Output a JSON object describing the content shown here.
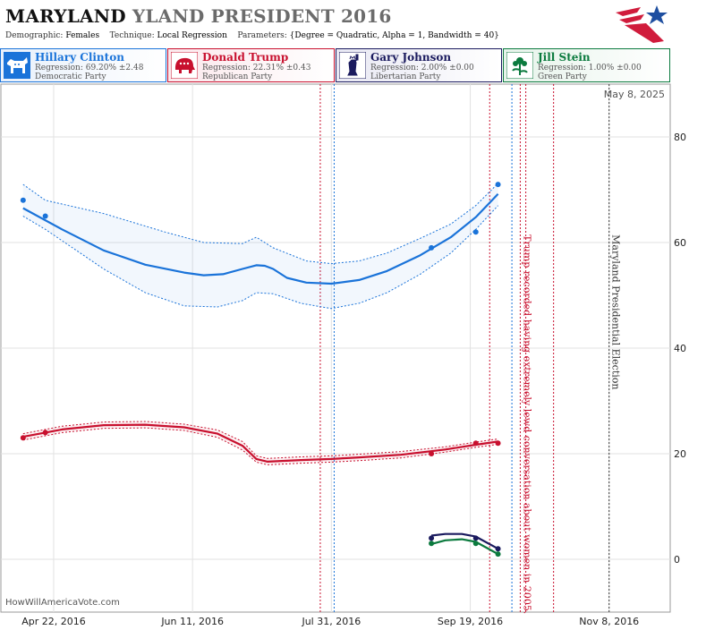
{
  "header": {
    "title_state": "MARYLAND",
    "title_rest": "YLAND PRESIDENT 2016",
    "demographic_label": "Demographic:",
    "demographic_value": "Females",
    "technique_label": "Technique:",
    "technique_value": "Local Regression",
    "parameters_label": "Parameters:",
    "parameters_value": "{Degree = Quadratic, Alpha = 1, Bandwidth = 40}"
  },
  "logo": {
    "icon": "star-logo-icon",
    "colors": [
      "#1f4fa0",
      "#d01c3c"
    ]
  },
  "legend": [
    {
      "name": "Hillary Clinton",
      "regression": "Regression: 69.20% ±2.48",
      "party": "Democratic Party",
      "color": "#1a73d9",
      "icon": "donkey-icon"
    },
    {
      "name": "Donald Trump",
      "regression": "Regression: 22.31% ±0.43",
      "party": "Republican Party",
      "color": "#c8102e",
      "icon": "elephant-icon"
    },
    {
      "name": "Gary Johnson",
      "regression": "Regression: 2.00% ±0.00",
      "party": "Libertarian Party",
      "color": "#1a1a5e",
      "icon": "statue-of-liberty-icon"
    },
    {
      "name": "Jill Stein",
      "regression": "Regression: 1.00% ±0.00",
      "party": "Green Party",
      "color": "#0b7a3e",
      "icon": "flower-icon"
    }
  ],
  "footer": {
    "credit": "HowWillAmericaVote.com"
  },
  "chart_data": {
    "type": "line",
    "date_label": "May 8, 2025",
    "x_tick_labels": [
      "Apr 22, 2016",
      "Jun 11, 2016",
      "Jul 31, 2016",
      "Sep 19, 2016",
      "Nov 8, 2016"
    ],
    "x_tick_dates": [
      "2016-04-22",
      "2016-06-11",
      "2016-07-31",
      "2016-09-19",
      "2016-11-08"
    ],
    "xlim": [
      "2016-04-03",
      "2016-11-30"
    ],
    "ylim": [
      -10,
      90
    ],
    "y_ticks": [
      0,
      20,
      40,
      60,
      80
    ],
    "grid": true,
    "series": [
      {
        "name": "Hillary Clinton",
        "color": "#1a73d9",
        "points": [
          [
            "2016-04-11",
            68
          ],
          [
            "2016-04-19",
            65
          ],
          [
            "2016-09-05",
            59
          ],
          [
            "2016-09-21",
            62
          ],
          [
            "2016-09-29",
            71
          ]
        ],
        "trend": [
          [
            "2016-04-11",
            66.5
          ],
          [
            "2016-04-25",
            62.5
          ],
          [
            "2016-05-10",
            58.5
          ],
          [
            "2016-05-25",
            55.8
          ],
          [
            "2016-06-08",
            54.3
          ],
          [
            "2016-06-15",
            53.8
          ],
          [
            "2016-06-22",
            54.0
          ],
          [
            "2016-06-29",
            55.0
          ],
          [
            "2016-07-04",
            55.7
          ],
          [
            "2016-07-07",
            55.6
          ],
          [
            "2016-07-10",
            55.0
          ],
          [
            "2016-07-15",
            53.3
          ],
          [
            "2016-07-22",
            52.4
          ],
          [
            "2016-07-31",
            52.2
          ],
          [
            "2016-08-10",
            52.9
          ],
          [
            "2016-08-20",
            54.6
          ],
          [
            "2016-09-01",
            57.6
          ],
          [
            "2016-09-12",
            61.0
          ],
          [
            "2016-09-21",
            64.8
          ],
          [
            "2016-09-29",
            69.2
          ]
        ],
        "upper": [
          [
            "2016-04-11",
            71
          ],
          [
            "2016-04-19",
            68
          ],
          [
            "2016-05-10",
            65.5
          ],
          [
            "2016-06-01",
            62.0
          ],
          [
            "2016-06-15",
            60.0
          ],
          [
            "2016-06-29",
            59.8
          ],
          [
            "2016-07-04",
            61.0
          ],
          [
            "2016-07-10",
            59.0
          ],
          [
            "2016-07-22",
            56.5
          ],
          [
            "2016-07-31",
            56.0
          ],
          [
            "2016-08-10",
            56.5
          ],
          [
            "2016-08-20",
            58.0
          ],
          [
            "2016-09-01",
            60.8
          ],
          [
            "2016-09-12",
            63.5
          ],
          [
            "2016-09-21",
            67.0
          ],
          [
            "2016-09-29",
            71.2
          ]
        ],
        "lower": [
          [
            "2016-04-11",
            65
          ],
          [
            "2016-04-19",
            62.5
          ],
          [
            "2016-05-10",
            55.0
          ],
          [
            "2016-05-25",
            50.5
          ],
          [
            "2016-06-08",
            48.0
          ],
          [
            "2016-06-20",
            47.8
          ],
          [
            "2016-06-29",
            49.0
          ],
          [
            "2016-07-04",
            50.5
          ],
          [
            "2016-07-10",
            50.3
          ],
          [
            "2016-07-20",
            48.5
          ],
          [
            "2016-07-31",
            47.5
          ],
          [
            "2016-08-10",
            48.5
          ],
          [
            "2016-08-20",
            50.5
          ],
          [
            "2016-09-01",
            54.0
          ],
          [
            "2016-09-12",
            58.0
          ],
          [
            "2016-09-21",
            62.5
          ],
          [
            "2016-09-29",
            67.0
          ]
        ]
      },
      {
        "name": "Donald Trump",
        "color": "#c8102e",
        "points": [
          [
            "2016-04-11",
            23
          ],
          [
            "2016-04-19",
            24
          ],
          [
            "2016-09-05",
            20
          ],
          [
            "2016-09-21",
            22
          ],
          [
            "2016-09-29",
            22
          ]
        ],
        "trend": [
          [
            "2016-04-11",
            23.2
          ],
          [
            "2016-04-25",
            24.6
          ],
          [
            "2016-05-10",
            25.4
          ],
          [
            "2016-05-25",
            25.5
          ],
          [
            "2016-06-08",
            25.0
          ],
          [
            "2016-06-20",
            23.8
          ],
          [
            "2016-06-29",
            21.5
          ],
          [
            "2016-07-04",
            19.0
          ],
          [
            "2016-07-08",
            18.5
          ],
          [
            "2016-07-20",
            18.8
          ],
          [
            "2016-07-31",
            19.0
          ],
          [
            "2016-08-10",
            19.3
          ],
          [
            "2016-08-25",
            19.8
          ],
          [
            "2016-09-10",
            20.8
          ],
          [
            "2016-09-21",
            21.7
          ],
          [
            "2016-09-29",
            22.3
          ]
        ],
        "upper": [
          [
            "2016-04-11",
            23.8
          ],
          [
            "2016-04-25",
            25.2
          ],
          [
            "2016-05-10",
            26.0
          ],
          [
            "2016-05-25",
            26.1
          ],
          [
            "2016-06-08",
            25.6
          ],
          [
            "2016-06-20",
            24.5
          ],
          [
            "2016-06-29",
            22.3
          ],
          [
            "2016-07-04",
            19.6
          ],
          [
            "2016-07-08",
            19.1
          ],
          [
            "2016-07-20",
            19.4
          ],
          [
            "2016-07-31",
            19.6
          ],
          [
            "2016-08-10",
            19.9
          ],
          [
            "2016-08-25",
            20.4
          ],
          [
            "2016-09-10",
            21.3
          ],
          [
            "2016-09-21",
            22.2
          ],
          [
            "2016-09-29",
            22.8
          ]
        ],
        "lower": [
          [
            "2016-04-11",
            22.6
          ],
          [
            "2016-04-25",
            24.0
          ],
          [
            "2016-05-10",
            24.8
          ],
          [
            "2016-05-25",
            24.9
          ],
          [
            "2016-06-08",
            24.4
          ],
          [
            "2016-06-20",
            23.1
          ],
          [
            "2016-06-29",
            20.7
          ],
          [
            "2016-07-04",
            18.4
          ],
          [
            "2016-07-08",
            17.9
          ],
          [
            "2016-07-20",
            18.2
          ],
          [
            "2016-07-31",
            18.4
          ],
          [
            "2016-08-10",
            18.7
          ],
          [
            "2016-08-25",
            19.2
          ],
          [
            "2016-09-10",
            20.3
          ],
          [
            "2016-09-21",
            21.2
          ],
          [
            "2016-09-29",
            21.8
          ]
        ]
      },
      {
        "name": "Gary Johnson",
        "color": "#1a1a5e",
        "points": [
          [
            "2016-09-05",
            4
          ],
          [
            "2016-09-21",
            4
          ],
          [
            "2016-09-29",
            2
          ]
        ],
        "trend": [
          [
            "2016-09-05",
            4.5
          ],
          [
            "2016-09-10",
            4.8
          ],
          [
            "2016-09-16",
            4.8
          ],
          [
            "2016-09-21",
            4.3
          ],
          [
            "2016-09-29",
            2.0
          ]
        ]
      },
      {
        "name": "Jill Stein",
        "color": "#0b7a3e",
        "points": [
          [
            "2016-09-05",
            3
          ],
          [
            "2016-09-21",
            3
          ],
          [
            "2016-09-29",
            1
          ]
        ],
        "trend": [
          [
            "2016-09-05",
            2.9
          ],
          [
            "2016-09-10",
            3.6
          ],
          [
            "2016-09-16",
            3.8
          ],
          [
            "2016-09-21",
            3.3
          ],
          [
            "2016-09-29",
            1.0
          ]
        ]
      }
    ],
    "events": [
      {
        "date": "2016-07-27",
        "color": "#c8102e",
        "label": ""
      },
      {
        "date": "2016-08-01",
        "color": "#1a73d9",
        "label": ""
      },
      {
        "date": "2016-09-26",
        "color": "#c8102e",
        "label": ""
      },
      {
        "date": "2016-10-04",
        "color": "#1a73d9",
        "label": ""
      },
      {
        "date": "2016-10-07",
        "color": "#c8102e",
        "label": "Trump recorded having extremely lewd conversation about women in 2005."
      },
      {
        "date": "2016-10-09",
        "color": "#c8102e",
        "label": ""
      },
      {
        "date": "2016-10-19",
        "color": "#c8102e",
        "label": ""
      },
      {
        "date": "2016-11-08",
        "color": "#333333",
        "label": "Maryland Presidential Election"
      }
    ]
  }
}
